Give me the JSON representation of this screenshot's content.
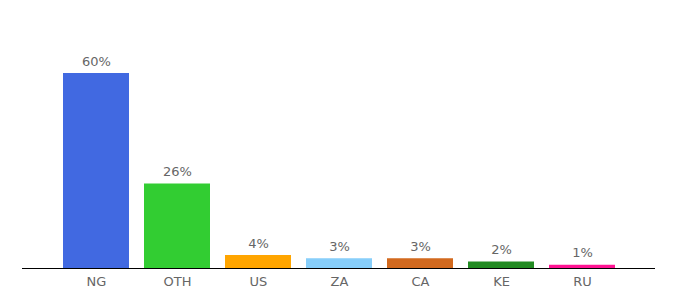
{
  "chart_data": {
    "type": "bar",
    "categories": [
      "NG",
      "OTH",
      "US",
      "ZA",
      "CA",
      "KE",
      "RU"
    ],
    "values": [
      60,
      26,
      4,
      3,
      3,
      2,
      1
    ],
    "value_labels": [
      "60%",
      "26%",
      "4%",
      "3%",
      "3%",
      "2%",
      "1%"
    ],
    "colors": [
      "#4169e1",
      "#32cd32",
      "#ffa500",
      "#87cefa",
      "#d2691e",
      "#228b22",
      "#ff1493"
    ],
    "data_labels": true,
    "tick_labels": "x",
    "grid": false
  }
}
